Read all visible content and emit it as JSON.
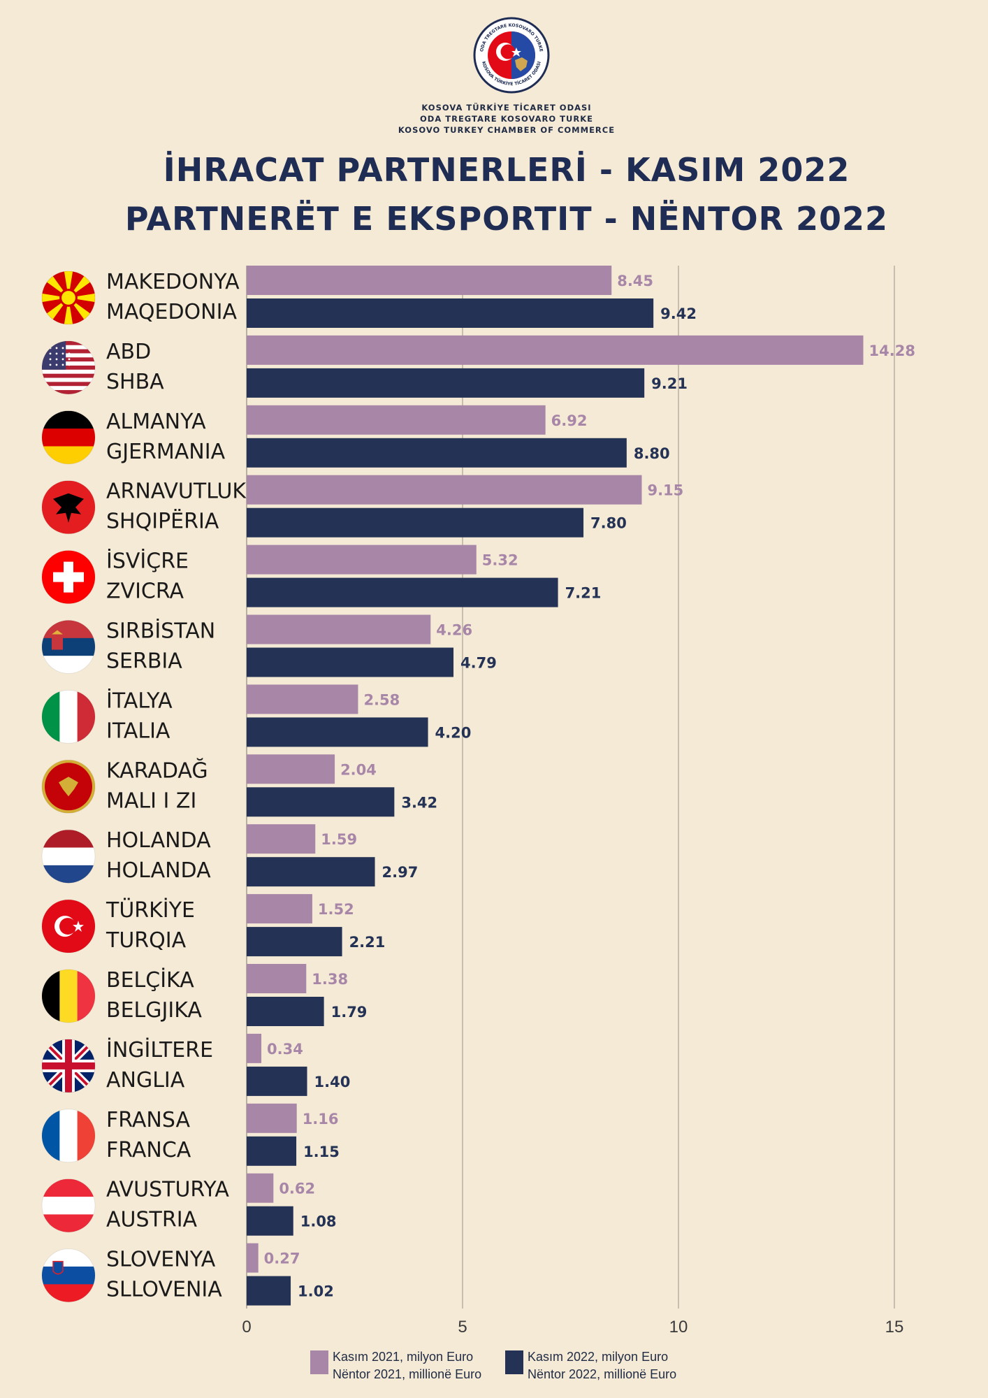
{
  "header": {
    "org_lines": [
      "KOSOVA TÜRKİYE TİCARET ODASI",
      "ODA TREGTARE KOSOVARO TURKE",
      "KOSOVO TURKEY CHAMBER OF COMMERCE"
    ],
    "logo_text": [
      "ODA TREGTARE KOSOVARO TURKE",
      "KOSOVA TÜRKİYE TİCARET ODASI"
    ],
    "title_tr": "İHRACAT PARTNERLERİ - KASIM 2022",
    "title_sq": "PARTNERËT E EKSPORTIT - NËNTOR 2022"
  },
  "colors": {
    "background": "#f5ead6",
    "series_2021": "#a886a8",
    "series_2022": "#243255",
    "title": "#1f2d55",
    "grid": "#b9b0a4"
  },
  "legend": {
    "series_2021": {
      "line1": "Kasım 2021, milyon Euro",
      "line2": "Nëntor 2021, millionë Euro"
    },
    "series_2022": {
      "line1": "Kasım 2022, milyon Euro",
      "line2": "Nëntor 2022, millionë Euro"
    }
  },
  "chart_data": {
    "type": "bar",
    "orientation": "horizontal",
    "categories": [
      {
        "tr": "MAKEDONYA",
        "sq": "MAQEDONIA",
        "flag": "north-macedonia-flag-icon"
      },
      {
        "tr": "ABD",
        "sq": "SHBA",
        "flag": "usa-flag-icon"
      },
      {
        "tr": "ALMANYA",
        "sq": "GJERMANIA",
        "flag": "germany-flag-icon"
      },
      {
        "tr": "ARNAVUTLUK",
        "sq": "SHQIPËRIA",
        "flag": "albania-flag-icon"
      },
      {
        "tr": "İSVİÇRE",
        "sq": "ZVICRA",
        "flag": "switzerland-flag-icon"
      },
      {
        "tr": "SIRBİSTAN",
        "sq": "SERBIA",
        "flag": "serbia-flag-icon"
      },
      {
        "tr": "İTALYA",
        "sq": "ITALIA",
        "flag": "italy-flag-icon"
      },
      {
        "tr": "KARADAĞ",
        "sq": "MALI I ZI",
        "flag": "montenegro-flag-icon"
      },
      {
        "tr": "HOLANDA",
        "sq": "HOLANDA",
        "flag": "netherlands-flag-icon"
      },
      {
        "tr": "TÜRKİYE",
        "sq": "TURQIA",
        "flag": "turkey-flag-icon"
      },
      {
        "tr": "BELÇİKA",
        "sq": "BELGJIKA",
        "flag": "belgium-flag-icon"
      },
      {
        "tr": "İNGİLTERE",
        "sq": "ANGLIA",
        "flag": "uk-flag-icon"
      },
      {
        "tr": "FRANSA",
        "sq": "FRANCA",
        "flag": "france-flag-icon"
      },
      {
        "tr": "AVUSTURYA",
        "sq": "AUSTRIA",
        "flag": "austria-flag-icon"
      },
      {
        "tr": "SLOVENYA",
        "sq": "SLLOVENIA",
        "flag": "slovenia-flag-icon"
      }
    ],
    "series": [
      {
        "name": "Kasım 2021, milyon Euro",
        "values": [
          8.45,
          14.28,
          6.92,
          9.15,
          5.32,
          4.26,
          2.58,
          2.04,
          1.59,
          1.52,
          1.38,
          0.34,
          1.16,
          0.62,
          0.27
        ],
        "labels": [
          "8.45",
          "14.28",
          "6.92",
          "9.15",
          "5.32",
          "4.26",
          "2.58",
          "2.04",
          "1.59",
          "1.52",
          "1.38",
          "0.34",
          "1.16",
          "0.62",
          "0.27"
        ]
      },
      {
        "name": "Kasım 2022, milyon Euro",
        "values": [
          9.42,
          9.21,
          8.8,
          7.8,
          7.21,
          4.79,
          4.2,
          3.42,
          2.97,
          2.21,
          1.79,
          1.4,
          1.15,
          1.08,
          1.02
        ],
        "labels": [
          "9.42",
          "9.21",
          "8.80",
          "7.80",
          "7.21",
          "4.79",
          "4.20",
          "3.42",
          "2.97",
          "2.21",
          "1.79",
          "1.40",
          "1.15",
          "1.08",
          "1.02"
        ]
      }
    ],
    "xlim": [
      0,
      15
    ],
    "xticks": [
      "0",
      "5",
      "10",
      "15"
    ],
    "grid": true,
    "legend_position": "bottom"
  }
}
